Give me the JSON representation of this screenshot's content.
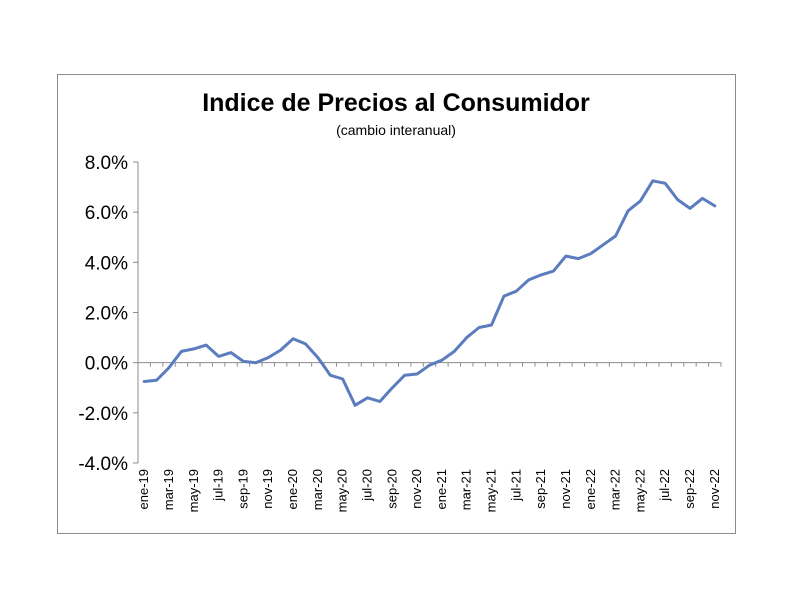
{
  "chart_data": {
    "type": "line",
    "title": "Indice de Precios al Consumidor",
    "subtitle": "(cambio interanual)",
    "xlabel": "",
    "ylabel": "",
    "ylim": [
      -4.0,
      8.0
    ],
    "yticks": [
      "8.0%",
      "6.0%",
      "4.0%",
      "2.0%",
      "0.0%",
      "-2.0%",
      "-4.0%"
    ],
    "ytick_values": [
      8,
      6,
      4,
      2,
      0,
      -2,
      -4
    ],
    "grid": false,
    "legend": "none",
    "line_color": "#5b7dbf",
    "categories": [
      "ene-19",
      "feb-19",
      "mar-19",
      "abr-19",
      "may-19",
      "jun-19",
      "jul-19",
      "ago-19",
      "sep-19",
      "oct-19",
      "nov-19",
      "dic-19",
      "ene-20",
      "feb-20",
      "mar-20",
      "abr-20",
      "may-20",
      "jun-20",
      "jul-20",
      "ago-20",
      "sep-20",
      "oct-20",
      "nov-20",
      "dic-20",
      "ene-21",
      "feb-21",
      "mar-21",
      "abr-21",
      "may-21",
      "jun-21",
      "jul-21",
      "ago-21",
      "sep-21",
      "oct-21",
      "nov-21",
      "dic-21",
      "ene-22",
      "feb-22",
      "mar-22",
      "abr-22",
      "may-22",
      "jun-22",
      "jul-22",
      "ago-22",
      "sep-22",
      "oct-22",
      "nov-22"
    ],
    "xtick_labels": [
      "ene-19",
      "mar-19",
      "may-19",
      "jul-19",
      "sep-19",
      "nov-19",
      "ene-20",
      "mar-20",
      "may-20",
      "jul-20",
      "sep-20",
      "nov-20",
      "ene-21",
      "mar-21",
      "may-21",
      "jul-21",
      "sep-21",
      "nov-21",
      "ene-22",
      "mar-22",
      "may-22",
      "jul-22",
      "sep-22",
      "nov-22"
    ],
    "series": [
      {
        "values": [
          -0.75,
          -0.7,
          -0.2,
          0.45,
          0.55,
          0.7,
          0.25,
          0.4,
          0.05,
          0.0,
          0.2,
          0.5,
          0.95,
          0.75,
          0.2,
          -0.5,
          -0.65,
          -1.7,
          -1.4,
          -1.55,
          -1.0,
          -0.5,
          -0.45,
          -0.1,
          0.1,
          0.45,
          1.0,
          1.4,
          1.5,
          2.65,
          2.85,
          3.3,
          3.5,
          3.65,
          4.25,
          4.15,
          4.35,
          4.7,
          5.05,
          6.05,
          6.45,
          7.25,
          7.15,
          6.5,
          6.15,
          6.55,
          6.25
        ]
      }
    ]
  }
}
